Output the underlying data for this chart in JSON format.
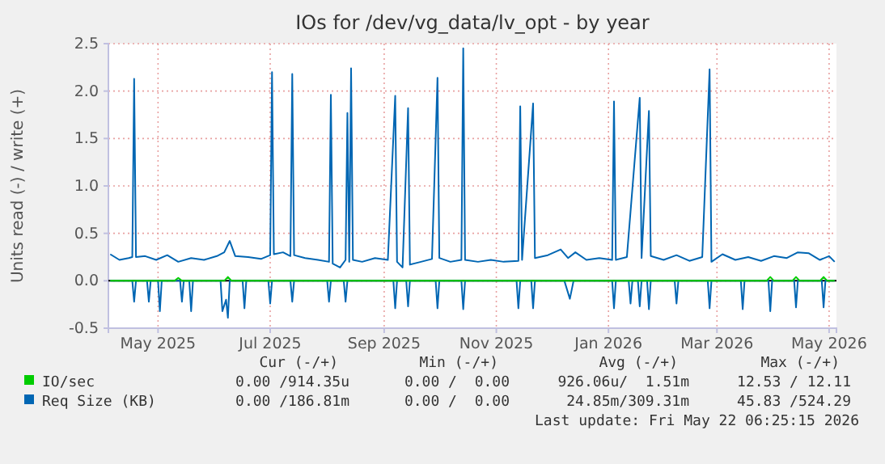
{
  "chart_data": {
    "type": "line",
    "title": "IOs for /dev/vg_data/lv_opt - by year",
    "ylabel": "Units read (-) / write (+)",
    "xlim": [
      "2025-04-04",
      "2026-05-05"
    ],
    "xticks": [
      {
        "value": "2025-05-01",
        "label": "May 2025"
      },
      {
        "value": "2025-07-01",
        "label": "Jul 2025"
      },
      {
        "value": "2025-09-01",
        "label": "Sep 2025"
      },
      {
        "value": "2025-11-01",
        "label": "Nov 2025"
      },
      {
        "value": "2026-01-01",
        "label": "Jan 2026"
      },
      {
        "value": "2026-03-01",
        "label": "Mar 2026"
      },
      {
        "value": "2026-05-01",
        "label": "May 2026"
      }
    ],
    "ylim": [
      -0.5,
      2.5
    ],
    "yticks": [
      {
        "value": -0.5,
        "label": "-0.5"
      },
      {
        "value": 0,
        "label": "0.0"
      },
      {
        "value": 0.5,
        "label": "0.5"
      },
      {
        "value": 1,
        "label": "1.0"
      },
      {
        "value": 1.5,
        "label": "1.5"
      },
      {
        "value": 2,
        "label": "2.0"
      },
      {
        "value": 2.5,
        "label": "2.5"
      }
    ],
    "grid": true,
    "legend": "bottom",
    "ref_lines": [
      {
        "axis": "y",
        "value": 0,
        "color": "#000000"
      }
    ],
    "series": [
      {
        "name": "IO/sec",
        "color": "#00cc00",
        "x": [
          "2025-04-05",
          "2025-05-10",
          "2025-05-12",
          "2025-05-14",
          "2025-06-06",
          "2025-06-08",
          "2025-06-10",
          "2026-03-28",
          "2026-03-30",
          "2026-04-01",
          "2026-04-11",
          "2026-04-13",
          "2026-04-15",
          "2026-04-26",
          "2026-04-28",
          "2026-04-30",
          "2026-05-04"
        ],
        "values": [
          0,
          0,
          0.03,
          0,
          0,
          0.04,
          0,
          0,
          0.04,
          0,
          0,
          0.04,
          0,
          0,
          0.04,
          0,
          0
        ]
      },
      {
        "color": "#0066b3",
        "x": [
          "2025-04-05",
          "2025-04-17",
          "2025-04-18",
          "2025-04-19",
          "2025-04-25",
          "2025-04-26",
          "2025-04-27",
          "2025-05-01",
          "2025-05-02",
          "2025-05-03",
          "2025-05-13",
          "2025-05-14",
          "2025-05-15",
          "2025-05-18",
          "2025-05-19",
          "2025-05-20",
          "2025-06-04",
          "2025-06-05",
          "2025-06-07",
          "2025-06-08",
          "2025-06-09",
          "2025-06-16",
          "2025-06-17",
          "2025-06-18",
          "2025-06-30",
          "2025-07-01",
          "2025-07-02",
          "2025-07-12",
          "2025-07-13",
          "2025-07-14",
          "2025-08-01",
          "2025-08-02",
          "2025-08-03",
          "2025-08-10",
          "2025-08-11",
          "2025-08-12",
          "2025-09-06",
          "2025-09-07",
          "2025-09-08",
          "2025-09-13",
          "2025-09-14",
          "2025-09-15",
          "2025-09-29",
          "2025-09-30",
          "2025-10-01",
          "2025-10-13",
          "2025-10-14",
          "2025-10-15",
          "2025-11-12",
          "2025-11-13",
          "2025-11-14",
          "2025-11-20",
          "2025-11-21",
          "2025-11-22",
          "2025-12-08",
          "2025-12-11",
          "2025-12-13",
          "2026-01-03",
          "2026-01-04",
          "2026-01-05",
          "2026-01-12",
          "2026-01-13",
          "2026-01-14",
          "2026-01-17",
          "2026-01-18",
          "2026-01-19",
          "2026-01-22",
          "2026-01-23",
          "2026-01-24",
          "2026-02-06",
          "2026-02-07",
          "2026-02-08",
          "2026-02-24",
          "2026-02-25",
          "2026-02-26",
          "2026-03-14",
          "2026-03-15",
          "2026-03-16",
          "2026-03-29",
          "2026-03-30",
          "2026-03-31",
          "2026-04-12",
          "2026-04-13",
          "2026-04-14",
          "2026-04-27",
          "2026-04-28",
          "2026-04-29",
          "2026-05-04"
        ],
        "values": [
          0,
          0,
          -0.22,
          0,
          0,
          -0.22,
          0,
          0,
          -0.32,
          0,
          0,
          -0.22,
          0,
          0,
          -0.32,
          0,
          0,
          -0.32,
          -0.2,
          -0.39,
          0,
          0,
          -0.29,
          0,
          0,
          -0.24,
          0,
          0,
          -0.22,
          0,
          0,
          -0.22,
          0,
          0,
          -0.22,
          0,
          0,
          -0.29,
          0,
          0,
          -0.27,
          0,
          0,
          -0.29,
          0,
          0,
          -0.3,
          0,
          0,
          -0.29,
          0,
          0,
          -0.29,
          0,
          0,
          -0.19,
          0,
          0,
          -0.29,
          0,
          0,
          -0.24,
          0,
          0,
          -0.27,
          0,
          0,
          -0.3,
          0,
          0,
          -0.24,
          0,
          0,
          -0.29,
          0,
          0,
          -0.3,
          0,
          0,
          -0.32,
          0,
          0,
          -0.28,
          0,
          0,
          -0.28,
          0,
          0
        ]
      },
      {
        "name": "Req Size (KB)",
        "color": "#0066b3",
        "x": [
          "2025-04-05",
          "2025-04-10",
          "2025-04-15",
          "2025-04-17",
          "2025-04-18",
          "2025-04-19",
          "2025-04-24",
          "2025-04-30",
          "2025-05-06",
          "2025-05-12",
          "2025-05-19",
          "2025-05-26",
          "2025-06-02",
          "2025-06-06",
          "2025-06-09",
          "2025-06-12",
          "2025-06-19",
          "2025-06-26",
          "2025-07-01",
          "2025-07-02",
          "2025-07-03",
          "2025-07-08",
          "2025-07-12",
          "2025-07-13",
          "2025-07-14",
          "2025-07-20",
          "2025-07-27",
          "2025-08-02",
          "2025-08-03",
          "2025-08-04",
          "2025-08-08",
          "2025-08-11",
          "2025-08-12",
          "2025-08-13",
          "2025-08-14",
          "2025-08-15",
          "2025-08-20",
          "2025-08-27",
          "2025-09-03",
          "2025-09-07",
          "2025-09-08",
          "2025-09-11",
          "2025-09-14",
          "2025-09-15",
          "2025-09-21",
          "2025-09-27",
          "2025-09-30",
          "2025-10-01",
          "2025-10-07",
          "2025-10-13",
          "2025-10-14",
          "2025-10-15",
          "2025-10-22",
          "2025-10-29",
          "2025-11-05",
          "2025-11-13",
          "2025-11-14",
          "2025-11-15",
          "2025-11-21",
          "2025-11-22",
          "2025-11-29",
          "2025-12-06",
          "2025-12-10",
          "2025-12-14",
          "2025-12-20",
          "2025-12-27",
          "2026-01-03",
          "2026-01-04",
          "2026-01-05",
          "2026-01-11",
          "2026-01-18",
          "2026-01-19",
          "2026-01-23",
          "2026-01-24",
          "2026-01-31",
          "2026-02-07",
          "2026-02-14",
          "2026-02-21",
          "2026-02-25",
          "2026-02-26",
          "2026-03-04",
          "2026-03-11",
          "2026-03-18",
          "2026-03-25",
          "2026-04-01",
          "2026-04-08",
          "2026-04-14",
          "2026-04-20",
          "2026-04-26",
          "2026-05-01",
          "2026-05-04"
        ],
        "values": [
          0.28,
          0.22,
          0.24,
          0.25,
          2.13,
          0.25,
          0.26,
          0.22,
          0.27,
          0.2,
          0.24,
          0.22,
          0.26,
          0.3,
          0.42,
          0.26,
          0.25,
          0.23,
          0.27,
          2.2,
          0.28,
          0.3,
          0.26,
          2.18,
          0.27,
          0.24,
          0.22,
          0.2,
          1.96,
          0.18,
          0.14,
          0.22,
          1.77,
          0.2,
          2.24,
          0.22,
          0.2,
          0.24,
          0.22,
          1.95,
          0.2,
          0.14,
          1.82,
          0.17,
          0.2,
          0.23,
          2.14,
          0.24,
          0.2,
          0.22,
          2.45,
          0.22,
          0.2,
          0.22,
          0.2,
          0.21,
          1.84,
          0.22,
          1.87,
          0.24,
          0.27,
          0.33,
          0.24,
          0.3,
          0.22,
          0.24,
          0.22,
          1.89,
          0.22,
          0.25,
          1.93,
          0.24,
          1.79,
          0.26,
          0.22,
          0.27,
          0.21,
          0.25,
          2.23,
          0.2,
          0.28,
          0.22,
          0.25,
          0.21,
          0.26,
          0.24,
          0.3,
          0.29,
          0.22,
          0.26,
          0.2
        ]
      }
    ],
    "annotations": [
      "Cur (-/+)",
      "Min (-/+)",
      "Avg (-/+)",
      "Max (-/+)",
      "0.00 /914.35u",
      "0.00 /  0.00",
      "926.06u/  1.51m",
      "12.53 / 12.11",
      "0.00 /186.81m",
      "0.00 /  0.00",
      "24.85m/309.31m",
      "45.83 /524.29",
      "Last update: Fri May 22 06:25:15 2026"
    ]
  }
}
